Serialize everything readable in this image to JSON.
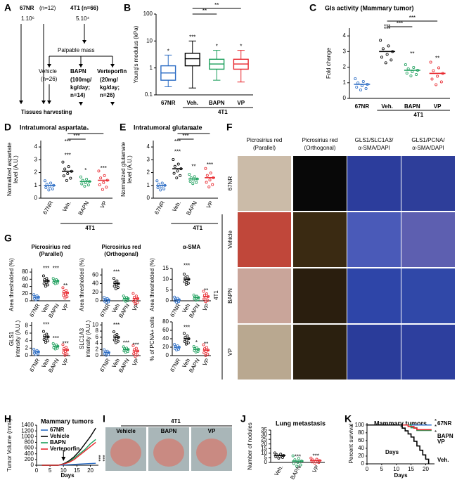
{
  "a": {
    "label": "A",
    "g1": "67NR",
    "g1n": "(n=12)",
    "g1cells": "1.10⁶",
    "g2": "4T1 (n=66)",
    "g2cells": "5.10⁴",
    "step": "Palpable mass",
    "vehicle": "Vehicle",
    "vehicle_n": "(n=26)",
    "bapn": "BAPN",
    "bapn_dose": [
      "(100mg/",
      "kg/day;",
      "n=14)"
    ],
    "vp": "Verteporfin",
    "vp_dose": [
      "(20mg/",
      "kg/day;",
      "n=26)"
    ],
    "end": "Tissues harvesting"
  },
  "b": {
    "label": "B",
    "ylabel": "Young's modulus (kPa)",
    "log": true,
    "ylim": [
      0.1,
      100
    ],
    "yticks": [
      0.1,
      1,
      10,
      100
    ],
    "categories": [
      "67NR",
      "Veh.",
      "BAPN",
      "VP"
    ],
    "colors": [
      "#2b6cc4",
      "#000000",
      "#1a9e5a",
      "#e8262d"
    ],
    "boxes": [
      {
        "min": 0.2,
        "q1": 0.35,
        "median": 0.65,
        "q3": 1.2,
        "max": 3
      },
      {
        "min": 0.18,
        "q1": 1.2,
        "median": 2.2,
        "q3": 3.5,
        "max": 10
      },
      {
        "min": 0.35,
        "q1": 0.9,
        "median": 1.4,
        "q3": 2.1,
        "max": 4.5
      },
      {
        "min": 0.3,
        "q1": 0.9,
        "median": 1.4,
        "q3": 2.1,
        "max": 4.5
      }
    ],
    "stars": [
      "*",
      "***",
      "*",
      "*"
    ],
    "group": "4T1",
    "comparisons": [
      "**",
      "**"
    ]
  },
  "c": {
    "label": "C",
    "title": "GIs activity (Mammary tumor)",
    "ylabel": "Fold change",
    "ylim": [
      0,
      4.5
    ],
    "yticks": [
      0,
      1,
      2,
      3,
      4
    ],
    "categories": [
      "67NR",
      "Veh.",
      "BAPN",
      "VP"
    ],
    "colors": [
      "#2b6cc4",
      "#000000",
      "#1a9e5a",
      "#e8262d"
    ],
    "means": [
      0.9,
      3.0,
      1.8,
      1.6
    ],
    "stars": [
      null,
      "***",
      "**",
      "**"
    ],
    "group": "4T1",
    "comparisons": [
      "***",
      "***",
      "***"
    ]
  },
  "d": {
    "label": "D",
    "title": "Intratumoral aspartate",
    "ylabel": [
      "Normalized aspartate",
      "level (A.U.)"
    ],
    "ylim": [
      0,
      4.5
    ],
    "yticks": [
      0,
      1,
      2,
      3,
      4
    ],
    "categories": [
      "67NR",
      "Veh.",
      "BAPN",
      "VP"
    ],
    "colors": [
      "#2b6cc4",
      "#000000",
      "#1a9e5a",
      "#e8262d"
    ],
    "means": [
      1.0,
      2.1,
      1.3,
      1.4
    ],
    "stars": [
      null,
      "***",
      "*",
      "***"
    ],
    "group": "4T1",
    "comparisons": [
      "***",
      "***",
      "***"
    ]
  },
  "e": {
    "label": "E",
    "title": "Intratumoral glutamate",
    "ylabel": [
      "Normalized glutamate",
      "level (A.U.)"
    ],
    "ylim": [
      0,
      4.5
    ],
    "yticks": [
      0,
      1,
      2,
      3,
      4
    ],
    "categories": [
      "67NR",
      "Veh.",
      "BAPN",
      "VP"
    ],
    "colors": [
      "#2b6cc4",
      "#000000",
      "#1a9e5a",
      "#e8262d"
    ],
    "means": [
      1.0,
      2.3,
      1.5,
      1.6
    ],
    "stars": [
      null,
      "***",
      "**",
      "***"
    ],
    "group": "4T1",
    "comparisons": [
      "***",
      "***",
      "***"
    ]
  },
  "f": {
    "label": "F",
    "columns": [
      [
        "Picrosirius red",
        "(Parallel)"
      ],
      [
        "Picrosirius red",
        "(Orthogonal)"
      ],
      [
        "GLS1/SLC1A3/",
        "α-SMA/DAPI"
      ],
      [
        "GLS1/PCNA/",
        "α-SMA/DAPI"
      ]
    ],
    "rows": [
      "67NR",
      "Vehicle",
      "BAPN",
      "VP"
    ],
    "group": "4T1"
  },
  "g": {
    "label": "G",
    "categories": [
      "67NR",
      "Veh",
      "BAPN",
      "VP"
    ],
    "colors": [
      "#2b6cc4",
      "#000000",
      "#1a9e5a",
      "#e8262d"
    ],
    "panels": [
      {
        "title": [
          "Picrosirius red",
          "(Parallel)"
        ],
        "ylabel": [
          "Area thresholded (%)"
        ],
        "ylim": [
          0,
          90
        ],
        "yticks": [
          0,
          20,
          40,
          60,
          80
        ],
        "means": [
          10,
          55,
          55,
          22
        ],
        "stars": [
          null,
          "***",
          "***",
          "**"
        ]
      },
      {
        "title": [
          "Picrosirius red",
          "(Orthogonal)"
        ],
        "ylabel": [
          "Area thresholded (%)"
        ],
        "ylim": [
          0,
          75
        ],
        "yticks": [
          0,
          20,
          40,
          60
        ],
        "means": [
          2,
          40,
          5,
          5
        ],
        "stars": [
          null,
          "***",
          null,
          null
        ]
      },
      {
        "title": [
          "α-SMA"
        ],
        "ylabel": [
          "Area thresholded (%)"
        ],
        "ylim": [
          0,
          15
        ],
        "yticks": [
          0,
          5,
          10,
          15
        ],
        "means": [
          0.5,
          10,
          1.5,
          2
        ],
        "stars": [
          null,
          "***",
          null,
          "**"
        ]
      },
      {
        "ylabel": [
          "GLS1",
          "intensity (A.U.)"
        ],
        "ylim": [
          0,
          9
        ],
        "yticks": [
          0,
          2,
          4,
          6,
          8
        ],
        "means": [
          1,
          5,
          2.5,
          1.5
        ],
        "stars": [
          null,
          "***",
          "***",
          "***"
        ]
      },
      {
        "ylabel": [
          "SLC1A3",
          "intensity (A.U.)"
        ],
        "ylim": [
          0,
          11
        ],
        "yticks": [
          0,
          2,
          4,
          6,
          8,
          10
        ],
        "means": [
          1,
          6,
          2,
          1.5
        ],
        "stars": [
          null,
          "***",
          "***",
          "***"
        ]
      },
      {
        "ylabel": [
          "% of PCNA+ cells"
        ],
        "ylim": [
          0,
          80
        ],
        "yticks": [
          0,
          20,
          40,
          60,
          80
        ],
        "means": [
          20,
          40,
          15,
          13
        ],
        "stars": [
          null,
          "***",
          "*",
          "**"
        ]
      }
    ]
  },
  "h": {
    "label": "H",
    "title": "Mammary tumors",
    "ylabel": "Tumor Volume (mm³)",
    "xlabel": "Days",
    "xlim": [
      0,
      23
    ],
    "ylim": [
      0,
      1400
    ],
    "xticks": [
      0,
      5,
      10,
      15,
      20
    ],
    "yticks": [
      0,
      200,
      400,
      600,
      800,
      1000,
      1200,
      1400
    ],
    "x": [
      2,
      4,
      6,
      8,
      10,
      12,
      14,
      16,
      18,
      20,
      22
    ],
    "series": [
      {
        "name": "67NR",
        "color": "#2b6cc4",
        "values": [
          0,
          0,
          0,
          0,
          10,
          20,
          30,
          40,
          50,
          60,
          70
        ]
      },
      {
        "name": "Vehicle",
        "color": "#000000",
        "values": [
          0,
          0,
          0,
          0,
          50,
          150,
          300,
          500,
          750,
          1000,
          1300
        ]
      },
      {
        "name": "BAPN",
        "color": "#1a9e5a",
        "values": [
          0,
          0,
          0,
          0,
          40,
          120,
          250,
          400,
          550,
          750,
          900
        ]
      },
      {
        "name": "Verteporfin",
        "color": "#e8262d",
        "values": [
          0,
          0,
          0,
          0,
          40,
          100,
          200,
          350,
          500,
          650,
          800
        ]
      }
    ],
    "stars": [
      "***",
      "***"
    ]
  },
  "i": {
    "label": "I",
    "group": "4T1",
    "columns": [
      "Vehicle",
      "BAPN",
      "VP"
    ]
  },
  "j": {
    "label": "J",
    "title": "Lung metastasis",
    "ylabel": "Number of nodules",
    "ylim": [
      0,
      35
    ],
    "yticks": [
      0,
      5,
      10,
      15,
      20,
      25,
      30,
      35
    ],
    "categories": [
      "Veh.",
      "BAPN",
      "VP"
    ],
    "colors": [
      "#000000",
      "#1a9e5a",
      "#e8262d"
    ],
    "means": [
      7.5,
      1.5,
      2
    ],
    "stars": [
      null,
      "***",
      "***"
    ]
  },
  "k": {
    "label": "K",
    "title": "Mammary tumors",
    "ylabel": "Percent survival",
    "xlabel": "Days",
    "note": "Days",
    "xlim": [
      0,
      23
    ],
    "ylim": [
      0,
      105
    ],
    "xticks": [
      0,
      5,
      10,
      15,
      20
    ],
    "yticks": [
      0,
      20,
      40,
      60,
      80,
      100
    ],
    "series": [
      {
        "name": "67NR",
        "color": "#2b6cc4",
        "x": [
          0,
          22
        ],
        "values": [
          100,
          100
        ]
      },
      {
        "name": "BAPN",
        "color": "#1a9e5a",
        "x": [
          0,
          15,
          17,
          22
        ],
        "values": [
          100,
          93,
          86,
          86
        ]
      },
      {
        "name": "VP",
        "color": "#e8262d",
        "x": [
          0,
          14,
          16,
          17,
          22
        ],
        "values": [
          100,
          96,
          92,
          88,
          88
        ]
      },
      {
        "name": "Veh.",
        "color": "#000000",
        "x": [
          0,
          12,
          13,
          14,
          15,
          16,
          17,
          18,
          19,
          20,
          21
        ],
        "values": [
          100,
          92,
          85,
          77,
          69,
          58,
          46,
          35,
          23,
          12,
          0
        ]
      }
    ],
    "stars": [
      "*",
      "*",
      "*"
    ]
  }
}
